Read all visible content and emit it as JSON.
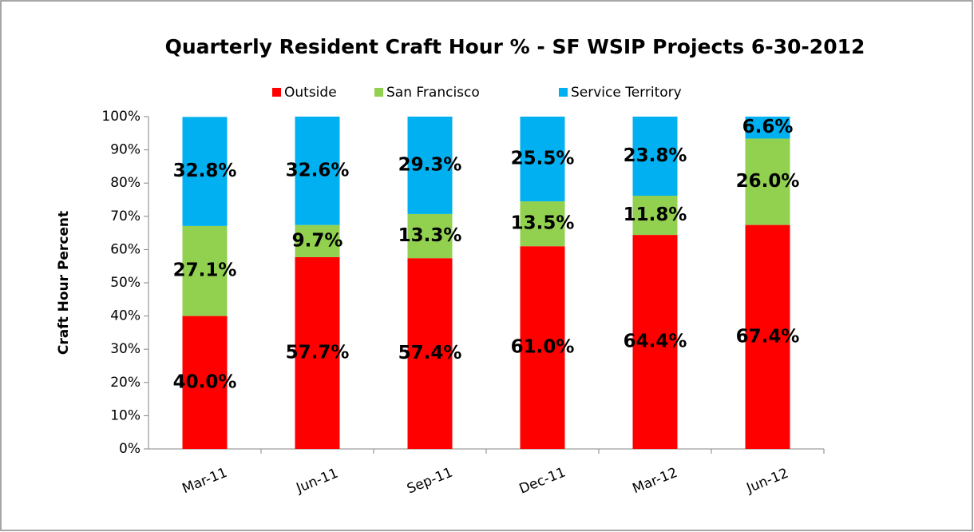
{
  "chart_data": {
    "type": "stacked_bar",
    "title": "Quarterly Resident Craft Hour % -  SF WSIP Projects 6-30-2012",
    "y_label": "Craft Hour Percent",
    "categories": [
      "Mar-11",
      "Jun-11",
      "Sep-11",
      "Dec-11",
      "Mar-12",
      "Jun-12"
    ],
    "series": [
      {
        "name": "Outside",
        "color": "#ff0000",
        "values": [
          40.0,
          57.7,
          57.4,
          61.0,
          64.4,
          67.4
        ],
        "value_labels": [
          "40.0%",
          "57.7%",
          "57.4%",
          "61.0%",
          "64.4%",
          "67.4%"
        ]
      },
      {
        "name": "San Francisco",
        "color": "#92d050",
        "values": [
          27.1,
          9.7,
          13.3,
          13.5,
          11.8,
          26.0
        ],
        "value_labels": [
          "27.1%",
          "9.7%",
          "13.3%",
          "13.5%",
          "11.8%",
          "26.0%"
        ]
      },
      {
        "name": "Service Territory",
        "color": "#00b0f0",
        "values": [
          32.8,
          32.6,
          29.3,
          25.5,
          23.8,
          6.6
        ],
        "value_labels": [
          "32.8%",
          "32.6%",
          "29.3%",
          "25.5%",
          "23.8%",
          "6.6%"
        ]
      }
    ],
    "ylim": [
      0,
      100
    ],
    "yticks": [
      {
        "value": 0,
        "label": "0%"
      },
      {
        "value": 10,
        "label": "10%"
      },
      {
        "value": 20,
        "label": "20%"
      },
      {
        "value": 30,
        "label": "30%"
      },
      {
        "value": 40,
        "label": "40%"
      },
      {
        "value": 50,
        "label": "50%"
      },
      {
        "value": 60,
        "label": "60%"
      },
      {
        "value": 70,
        "label": "70%"
      },
      {
        "value": 80,
        "label": "80%"
      },
      {
        "value": 90,
        "label": "90%"
      },
      {
        "value": 100,
        "label": "100%"
      }
    ],
    "legend": "top"
  }
}
